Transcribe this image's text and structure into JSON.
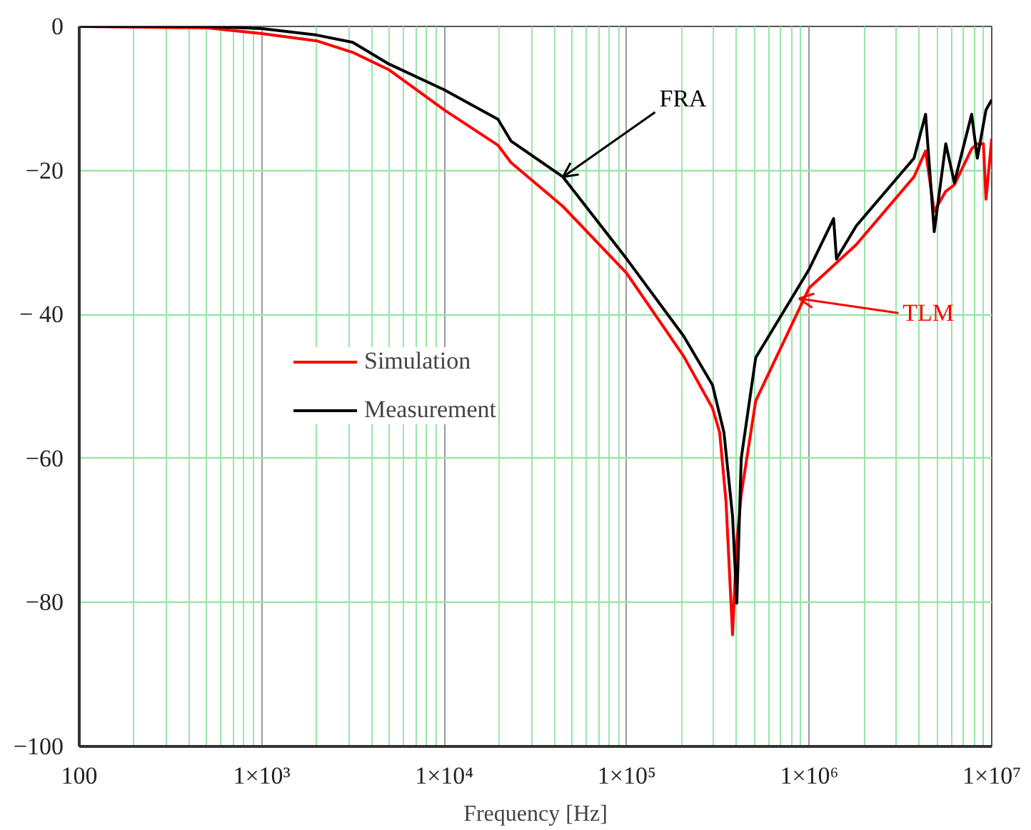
{
  "chart_data": {
    "type": "line",
    "xlabel": "Frequency [Hz]",
    "log": "x",
    "xlim": [
      100,
      10000000
    ],
    "ylim": [
      -100,
      0
    ],
    "xticks": [
      100,
      {
        "value": 200,
        "label": null
      },
      {
        "value": 300,
        "label": null
      },
      {
        "value": 400,
        "label": null
      },
      {
        "value": 500,
        "label": null
      },
      {
        "value": 600,
        "label": null
      },
      {
        "value": 700,
        "label": null
      },
      {
        "value": 800,
        "label": null
      },
      {
        "value": 900,
        "label": null
      },
      {
        "value": 2000,
        "label": null
      },
      {
        "value": 3000,
        "label": null
      },
      {
        "value": 4000,
        "label": null
      },
      {
        "value": 5000,
        "label": null
      },
      {
        "value": 6000,
        "label": null
      },
      {
        "value": 7000,
        "label": null
      },
      {
        "value": 8000,
        "label": null
      },
      {
        "value": 9000,
        "label": null
      },
      {
        "value": 20000,
        "label": null
      },
      {
        "value": 30000,
        "label": null
      },
      {
        "value": 40000,
        "label": null
      },
      {
        "value": 50000,
        "label": null
      },
      {
        "value": 60000,
        "label": null
      },
      {
        "value": 70000,
        "label": null
      },
      {
        "value": 80000,
        "label": null
      },
      {
        "value": 90000,
        "label": null
      },
      {
        "value": 200000,
        "label": null
      },
      {
        "value": 300000,
        "label": null
      },
      {
        "value": 400000,
        "label": null
      },
      {
        "value": 500000,
        "label": null
      },
      {
        "value": 600000,
        "label": null
      },
      {
        "value": 700000,
        "label": null
      },
      {
        "value": 800000,
        "label": null
      },
      {
        "value": 900000,
        "label": null
      },
      {
        "value": 2000000,
        "label": null
      },
      {
        "value": 3000000,
        "label": null
      },
      {
        "value": 4000000,
        "label": null
      },
      {
        "value": 5000000,
        "label": null
      },
      {
        "value": 6000000,
        "label": null
      },
      {
        "value": 7000000,
        "label": null
      },
      {
        "value": 8000000,
        "label": null
      },
      {
        "value": 9000000,
        "label": null
      },
      {
        "value": 1000,
        "label": "1×10³"
      },
      {
        "value": 10000,
        "label": "1×10⁴"
      },
      {
        "value": 100000,
        "label": "1×10⁵"
      },
      {
        "value": 1000000,
        "label": "1×10⁶"
      },
      {
        "value": 10000000,
        "label": "1×10⁷"
      }
    ],
    "yticks": [
      0,
      {
        "value": -20,
        "label": "−20"
      },
      {
        "value": -40,
        "label": "− 40"
      },
      {
        "value": -60,
        "label": "−60"
      },
      {
        "value": -80,
        "label": "−80"
      },
      {
        "value": -100,
        "label": "−100"
      }
    ],
    "grid": true,
    "legend": "left",
    "line_style": "solid",
    "series": [
      {
        "name": "Simulation",
        "color": "#ff0000",
        "x": [
          100,
          500,
          1000,
          2000,
          3150,
          4960,
          10000,
          19700,
          23200,
          44700,
          100000,
          205000,
          295000,
          323000,
          350000,
          380000,
          400000,
          424000,
          509000,
          1000000,
          1810000,
          3750000,
          4340000,
          4840000,
          5600000,
          6240000,
          7760000,
          8340000,
          9000000,
          9300000,
          10000000
        ],
        "values": [
          0,
          -0.2,
          -1,
          -2,
          -3.6,
          -6,
          -11.6,
          -16.5,
          -18.9,
          -25,
          -34.3,
          -45.8,
          -53,
          -56.4,
          -66,
          -84.5,
          -72,
          -65,
          -52,
          -36.3,
          -30.3,
          -20.9,
          -17.3,
          -25.7,
          -22.9,
          -22,
          -17,
          -16.3,
          -16.3,
          -24,
          -15.6
        ]
      },
      {
        "name": "Measurement",
        "color": "#000000",
        "x": [
          100,
          500,
          1000,
          2000,
          3150,
          4960,
          10000,
          19700,
          23200,
          44700,
          100000,
          205000,
          295000,
          341000,
          380000,
          401000,
          424000,
          509000,
          1000000,
          1360000,
          1410000,
          1810000,
          3750000,
          4340000,
          4840000,
          5600000,
          6240000,
          7760000,
          8340000,
          9300000,
          10000000
        ],
        "values": [
          0,
          0,
          -0.3,
          -1.2,
          -2.2,
          -5.2,
          -8.8,
          -12.9,
          -15.9,
          -20.9,
          -32.3,
          -43,
          -49.8,
          -56.4,
          -68,
          -80.1,
          -60,
          -46,
          -33.7,
          -26.7,
          -32.3,
          -27.7,
          -18.3,
          -12.2,
          -28.5,
          -16.3,
          -21.7,
          -12.2,
          -18.3,
          -11.6,
          -10.2
        ]
      }
    ],
    "annotations": [
      {
        "text": "FRA",
        "x": 44700,
        "y": -20.9
      },
      {
        "text": "TLM",
        "x": 880000,
        "y": -37.8
      }
    ]
  }
}
